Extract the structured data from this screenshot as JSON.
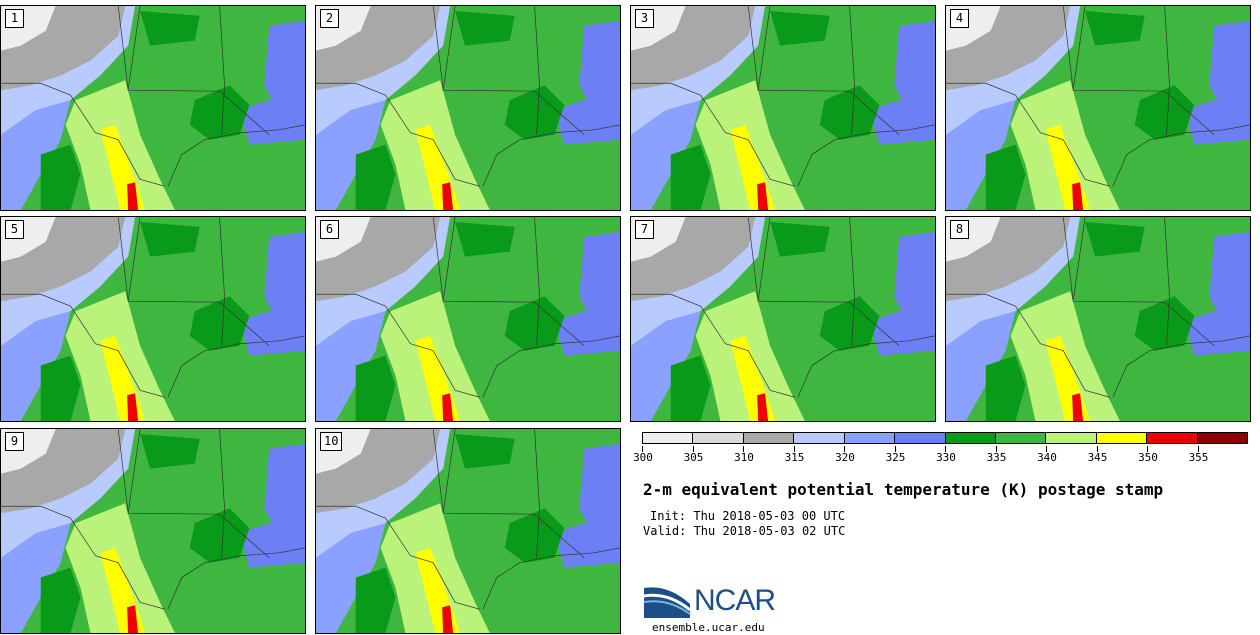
{
  "panels": [
    {
      "label": "1"
    },
    {
      "label": "2"
    },
    {
      "label": "3"
    },
    {
      "label": "4"
    },
    {
      "label": "5"
    },
    {
      "label": "6"
    },
    {
      "label": "7"
    },
    {
      "label": "8"
    },
    {
      "label": "9"
    },
    {
      "label": "10"
    }
  ],
  "legend": {
    "colors": [
      "#eeeeee",
      "#d9d9d9",
      "#a8a8a8",
      "#b8caff",
      "#8aa1ff",
      "#6d7ff5",
      "#0a9a1a",
      "#3fb63f",
      "#baf27a",
      "#ffff00",
      "#ee0000",
      "#8b0000"
    ],
    "ticks": [
      "300",
      "305",
      "310",
      "315",
      "320",
      "325",
      "330",
      "335",
      "340",
      "345",
      "350",
      "355"
    ]
  },
  "title": "2-m equivalent potential temperature (K) postage stamp",
  "init": "Init: Thu 2018-05-03 00 UTC",
  "valid": "Valid: Thu 2018-05-03 02 UTC",
  "logo": {
    "name": "NCAR",
    "url": "ensemble.ucar.edu"
  }
}
